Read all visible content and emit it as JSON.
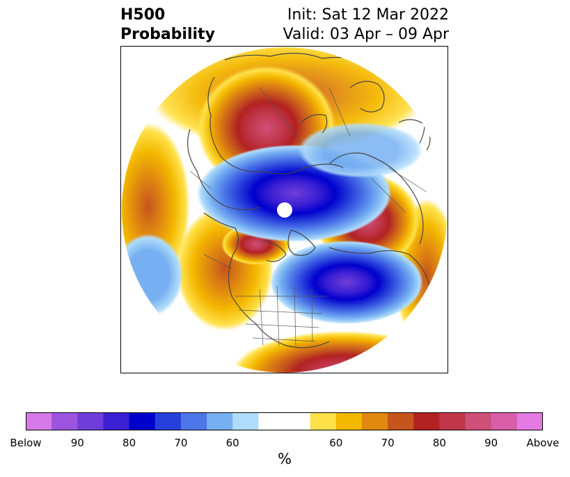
{
  "title": {
    "left_line1": "H500",
    "left_line2": "Probability",
    "right_line1": "Init: Sat 12 Mar 2022",
    "right_line2": "Valid: 03 Apr – 09 Apr"
  },
  "colorbar": {
    "unit": "%",
    "colors": [
      "#d57ae6",
      "#9d55e0",
      "#6f3ed9",
      "#3b1fd3",
      "#0000cd",
      "#2740db",
      "#4d76e8",
      "#77b0f2",
      "#b0dcfb",
      "#ffffff",
      "#ffffff",
      "#ffe14a",
      "#f4b800",
      "#e08810",
      "#c5541d",
      "#b22222",
      "#c0364a",
      "#cf5078",
      "#d95ea8",
      "#e57ae3"
    ],
    "tick_labels": [
      "Below",
      "90",
      "80",
      "70",
      "60",
      "",
      "60",
      "70",
      "80",
      "90",
      "Above"
    ]
  },
  "map": {
    "projection": "north-polar-stereographic",
    "features": [
      "polar-data-gap",
      "positive-anomaly-centers",
      "negative-anomaly-centers",
      "coastlines",
      "borders",
      "us-state-lines"
    ]
  }
}
